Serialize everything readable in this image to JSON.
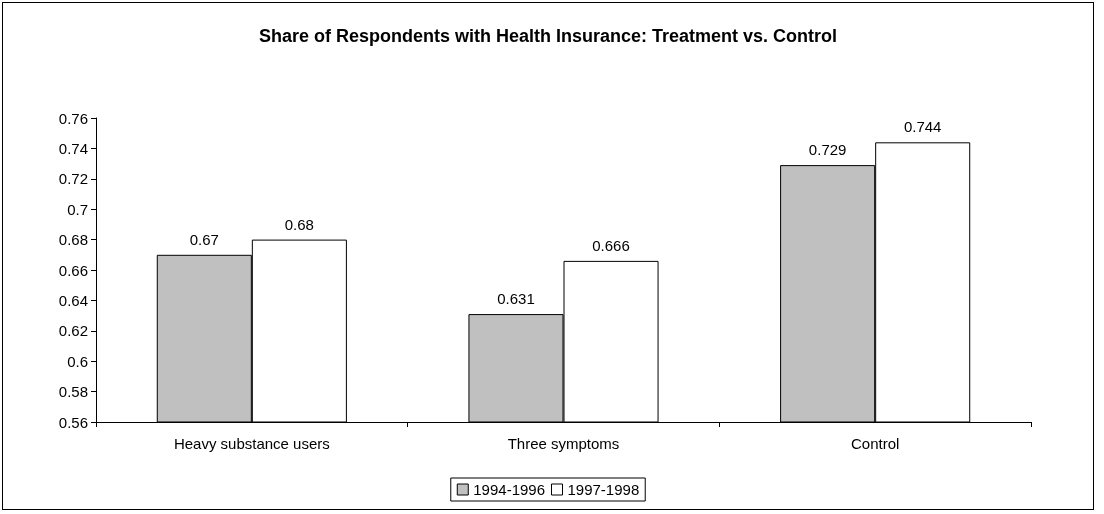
{
  "chart_data": {
    "type": "bar",
    "title": "Share of Respondents with Health Insurance: Treatment vs. Control",
    "categories": [
      "Heavy substance users",
      "Three symptoms",
      "Control"
    ],
    "series": [
      {
        "name": "1994-1996",
        "color": "#c0c0c0",
        "values": [
          0.67,
          0.631,
          0.729
        ]
      },
      {
        "name": "1997-1998",
        "color": "#ffffff",
        "values": [
          0.68,
          0.666,
          0.744
        ]
      }
    ],
    "ylim": [
      0.56,
      0.76
    ],
    "yticks": [
      0.56,
      0.58,
      0.6,
      0.62,
      0.64,
      0.66,
      0.68,
      0.7,
      0.72,
      0.74,
      0.76
    ],
    "grid": false,
    "legend": "bottom",
    "data_labels": true
  }
}
